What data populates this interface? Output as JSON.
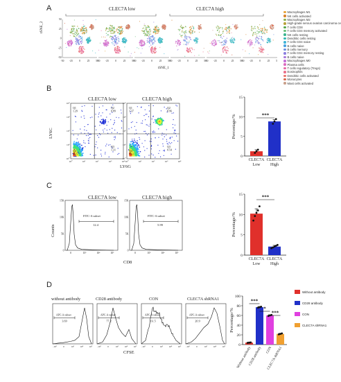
{
  "panelA": {
    "letter": "A",
    "group_low": "CLEC7A low",
    "group_high": "CLEC7A high",
    "ylabel": "tSNE_2",
    "xlabel": "tSNE_1",
    "ticks": [
      "-50",
      "-25",
      "0",
      "25",
      "50"
    ],
    "legend": [
      {
        "label": "Macrophages M1",
        "color": "#e8a33a"
      },
      {
        "label": "NK cells activated",
        "color": "#d9822b"
      },
      {
        "label": "Macrophages M2",
        "color": "#8bb04a"
      },
      {
        "label": "High-grade serous ovarian carcinoma cells",
        "color": "#b9a13a"
      },
      {
        "label": "T cells CD8",
        "color": "#55a84b"
      },
      {
        "label": "T cells CD4 memory activated",
        "color": "#6cc07a"
      },
      {
        "label": "NK cells resting",
        "color": "#3bb58f"
      },
      {
        "label": "Dendritic cells resting",
        "color": "#35b8b0"
      },
      {
        "label": "T cells CD4 naive",
        "color": "#3fb5d6"
      },
      {
        "label": "B cells naive",
        "color": "#4aa2e0"
      },
      {
        "label": "B cells memory",
        "color": "#6d8fe0"
      },
      {
        "label": "T cells CD4 memory resting",
        "color": "#8c7fe0"
      },
      {
        "label": "B cells naive",
        "color": "#a879dc"
      },
      {
        "label": "Macrophages M0",
        "color": "#c46fd6"
      },
      {
        "label": "Plasma cells",
        "color": "#dc6bc0"
      },
      {
        "label": "T cells regulatory (Tregs)",
        "color": "#e86aa6"
      },
      {
        "label": "Eosinophils",
        "color": "#ea6f8a"
      },
      {
        "label": "Dendritic cells activated",
        "color": "#e9766e"
      },
      {
        "label": "Monocytes",
        "color": "#d9694d"
      },
      {
        "label": "Mast cells activated",
        "color": "#c9a08b"
      }
    ]
  },
  "panelB": {
    "letter": "B",
    "title_low": "CLEC7A low",
    "title_high": "CLEC7A high",
    "ylabel": "LY6C",
    "xlabel": "LY6G",
    "quads_low": [
      {
        "q": "Q1",
        "v": "1.29"
      },
      {
        "q": "Q2",
        "v": "0.89"
      },
      {
        "q": "Q4",
        "v": "96.5"
      },
      {
        "q": "Q3",
        "v": "1.31"
      }
    ],
    "quads_high": [
      {
        "q": "Q1",
        "v": "1.37"
      },
      {
        "q": "Q2",
        "v": "8.96"
      },
      {
        "q": "Q4",
        "v": "89.1"
      },
      {
        "q": "Q3",
        "v": "0.54"
      }
    ],
    "flow_ticks": [
      "10⁰",
      "10¹",
      "10²",
      "10³",
      "10⁴"
    ]
  },
  "panelC": {
    "letter": "C",
    "title_low": "CLEC7A low",
    "title_high": "CLEC7A high",
    "ylabel": "Counts",
    "xlabel": "CD8",
    "gate_name": "FITC-A subset",
    "gate_low": "12.4",
    "gate_high": "5.99",
    "y_ticks": [
      "0",
      "5K",
      "10K",
      "15K"
    ],
    "x_ticks": [
      "0",
      "10³",
      "10⁴",
      "10⁵"
    ]
  },
  "panelD": {
    "letter": "D",
    "titles": [
      "without antibody",
      "CD28 antibody",
      "CON",
      "CLEC7A shRNA1"
    ],
    "gate_name": "APC-A subset",
    "gates": [
      "3.69",
      "77.2",
      "61.5",
      "20.9"
    ],
    "xlabel": "CFSE",
    "x_ticks": [
      "-10³",
      "0",
      "10³",
      "10⁴",
      "10⁵"
    ],
    "legend": [
      {
        "label": "Without antibody",
        "color": "#e0302b"
      },
      {
        "label": "CD28 antibody",
        "color": "#2030c8"
      },
      {
        "label": "CON",
        "color": "#e040e0"
      },
      {
        "label": "CLEC7A shRNA1",
        "color": "#f0a030"
      }
    ]
  },
  "chart_data": [
    {
      "type": "bar",
      "panel": "B",
      "categories": [
        "CLEC7A Low",
        "CLEC7A High"
      ],
      "values": [
        1.2,
        8.8
      ],
      "errors": [
        0.4,
        0.5
      ],
      "points": [
        [
          0.8,
          1.2,
          1.6
        ],
        [
          8.2,
          8.8,
          9.4
        ]
      ],
      "colors": [
        "#e0302b",
        "#2030c8"
      ],
      "ylabel": "Percentage/%",
      "ylim": [
        0,
        15
      ],
      "yticks": [
        0,
        5,
        10,
        15
      ],
      "significance": [
        {
          "pair": [
            0,
            1
          ],
          "label": "***"
        }
      ]
    },
    {
      "type": "bar",
      "panel": "C",
      "categories": [
        "CLEC7A Low",
        "CLEC7A High"
      ],
      "values": [
        10.2,
        2.1
      ],
      "errors": [
        1.2,
        0.3
      ],
      "points": [
        [
          8.5,
          9.6,
          10.4,
          11.0,
          12.0
        ],
        [
          1.7,
          1.9,
          2.1,
          2.3,
          2.5
        ]
      ],
      "colors": [
        "#e0302b",
        "#2030c8"
      ],
      "ylabel": "Percentage/%",
      "ylim": [
        0,
        15
      ],
      "yticks": [
        0,
        5,
        10,
        15
      ],
      "significance": [
        {
          "pair": [
            0,
            1
          ],
          "label": "***"
        }
      ]
    },
    {
      "type": "bar",
      "panel": "D",
      "categories": [
        "Without antibody",
        "CD28 antibody",
        "CON",
        "CLEC7A shRNA1"
      ],
      "values": [
        4,
        77,
        60,
        22
      ],
      "errors": [
        0.8,
        1.5,
        1.5,
        1.2
      ],
      "points": [
        [
          3.5,
          4,
          4.5
        ],
        [
          76,
          77,
          78
        ],
        [
          59,
          60,
          61
        ],
        [
          21,
          22,
          23
        ]
      ],
      "colors": [
        "#e0302b",
        "#2030c8",
        "#e040e0",
        "#f0a030"
      ],
      "ylabel": "Percentage/%",
      "ylim": [
        0,
        100
      ],
      "yticks": [
        0,
        20,
        40,
        60,
        80,
        100
      ],
      "significance": [
        {
          "pair": [
            0,
            1
          ],
          "label": "***"
        },
        {
          "pair": [
            1,
            2
          ],
          "label": "*"
        },
        {
          "pair": [
            2,
            3
          ],
          "label": "***"
        }
      ]
    }
  ]
}
